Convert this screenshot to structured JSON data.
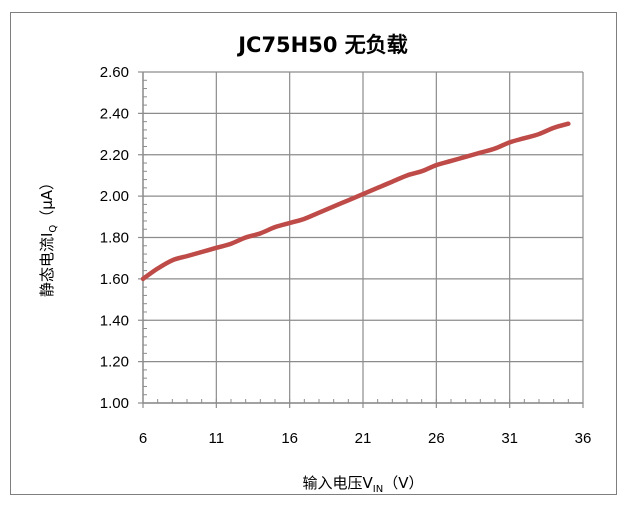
{
  "chart_data": {
    "type": "line",
    "title": "JC75H50 无负载",
    "xlabel": {
      "prefix": "输入电压V",
      "subscript": "IN",
      "suffix": "（V）"
    },
    "ylabel": {
      "prefix": "静态电流I",
      "subscript": "Q",
      "suffix": "（μA）"
    },
    "xlim": [
      6,
      36
    ],
    "ylim": [
      1.0,
      2.6
    ],
    "x_ticks": [
      "6",
      "11",
      "16",
      "21",
      "26",
      "31",
      "36"
    ],
    "y_ticks": [
      "1.00",
      "1.20",
      "1.40",
      "1.60",
      "1.80",
      "2.00",
      "2.20",
      "2.40",
      "2.60"
    ],
    "grid": true,
    "legend": "none",
    "series": [
      {
        "color": "#be4b48",
        "x": [
          6,
          7,
          8,
          9,
          10,
          11,
          12,
          13,
          14,
          15,
          16,
          17,
          18,
          19,
          20,
          21,
          22,
          23,
          24,
          25,
          26,
          27,
          28,
          29,
          30,
          31,
          32,
          33,
          34,
          35
        ],
        "y": [
          1.6,
          1.65,
          1.69,
          1.71,
          1.73,
          1.75,
          1.77,
          1.8,
          1.82,
          1.85,
          1.87,
          1.89,
          1.92,
          1.95,
          1.98,
          2.01,
          2.04,
          2.07,
          2.1,
          2.12,
          2.15,
          2.17,
          2.19,
          2.21,
          2.23,
          2.26,
          2.28,
          2.3,
          2.33,
          2.35
        ]
      }
    ]
  }
}
